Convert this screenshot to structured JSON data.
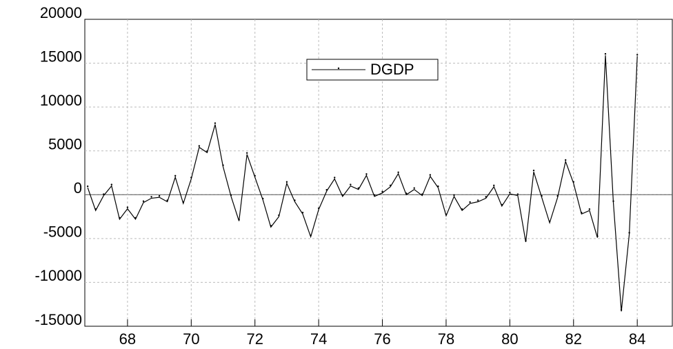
{
  "chart_data": {
    "type": "line",
    "x": [
      66.75,
      67,
      67.25,
      67.5,
      67.75,
      68,
      68.25,
      68.5,
      68.75,
      69,
      69.25,
      69.5,
      69.75,
      70,
      70.25,
      70.5,
      70.75,
      71,
      71.25,
      71.5,
      71.75,
      72,
      72.25,
      72.5,
      72.75,
      73,
      73.25,
      73.5,
      73.75,
      74,
      74.25,
      74.5,
      74.75,
      75,
      75.25,
      75.5,
      75.75,
      76,
      76.25,
      76.5,
      76.75,
      77,
      77.25,
      77.5,
      77.75,
      78,
      78.25,
      78.5,
      78.75,
      79,
      79.25,
      79.5,
      79.75,
      80,
      80.25,
      80.5,
      80.75,
      81,
      81.25,
      81.5,
      81.75,
      82,
      82.25,
      82.5,
      82.75,
      83,
      83.25,
      83.5,
      83.75,
      84
    ],
    "series": [
      {
        "name": "DGDP",
        "color": "#000000",
        "values": [
          800,
          -1800,
          -100,
          1000,
          -2800,
          -1600,
          -2800,
          -900,
          -400,
          -300,
          -800,
          2000,
          -1000,
          1800,
          5400,
          4800,
          8000,
          3200,
          -200,
          -3000,
          4600,
          2000,
          -600,
          -3700,
          -2500,
          1300,
          -800,
          -2200,
          -4800,
          -1700,
          400,
          1800,
          -200,
          1000,
          600,
          2200,
          -200,
          200,
          900,
          2400,
          0,
          600,
          -100,
          2100,
          800,
          -2400,
          -200,
          -1800,
          -1000,
          -800,
          -400,
          900,
          -1300,
          100,
          -100,
          -5400,
          2600,
          -300,
          -3200,
          -300,
          3800,
          1300,
          -2200,
          -1800,
          -4900,
          15900,
          -900,
          -13300,
          -4500,
          15800
        ]
      }
    ],
    "xlim": [
      66.66,
      85.1
    ],
    "xticks": [
      68,
      70,
      72,
      74,
      76,
      78,
      80,
      82,
      84
    ],
    "ylim": [
      -15000,
      20000
    ],
    "yticks": [
      -15000,
      -10000,
      -5000,
      0,
      5000,
      10000,
      15000,
      20000
    ],
    "grid": true
  }
}
